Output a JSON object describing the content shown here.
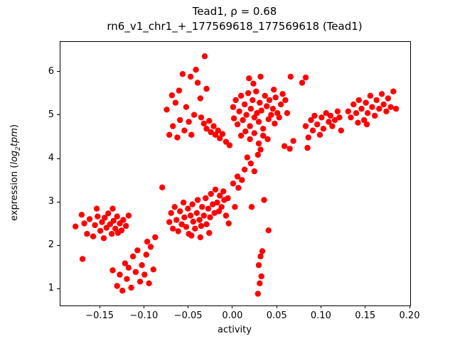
{
  "figure": {
    "title_line1": "Tead1, ρ = 0.68",
    "title_line2": "rn6_v1_chr1_+_177569618_177569618 (Tead1)"
  },
  "chart_data": {
    "type": "scatter",
    "title": "Tead1, ρ = 0.68",
    "subtitle": "rn6_v1_chr1_+_177569618_177569618 (Tead1)",
    "xlabel": "activity",
    "ylabel": "expression (log2 tpm)",
    "ylabel_parts": {
      "prefix": "expression (",
      "italic1": "log",
      "sub": "2",
      "italic2": "tpm",
      "suffix": ")"
    },
    "correlation_rho": 0.68,
    "marker_color": "#ff0000",
    "marker_radius": 4.2,
    "grid": false,
    "legend": "none",
    "xlim": [
      -0.195,
      0.2
    ],
    "ylim": [
      0.63,
      6.7
    ],
    "xticks": [
      {
        "v": -0.15,
        "label": "−0.15"
      },
      {
        "v": -0.1,
        "label": "−0.10"
      },
      {
        "v": -0.05,
        "label": "−0.05"
      },
      {
        "v": 0.0,
        "label": "0.00"
      },
      {
        "v": 0.05,
        "label": "0.05"
      },
      {
        "v": 0.1,
        "label": "0.10"
      },
      {
        "v": 0.15,
        "label": "0.15"
      },
      {
        "v": 0.2,
        "label": "0.20"
      }
    ],
    "yticks": [
      {
        "v": 1,
        "label": "1"
      },
      {
        "v": 2,
        "label": "2"
      },
      {
        "v": 3,
        "label": "3"
      },
      {
        "v": 4,
        "label": "4"
      },
      {
        "v": 5,
        "label": "5"
      },
      {
        "v": 6,
        "label": "6"
      }
    ],
    "points": [
      [
        -0.178,
        2.45
      ],
      [
        -0.171,
        2.72
      ],
      [
        -0.168,
        2.52
      ],
      [
        -0.165,
        2.28
      ],
      [
        -0.162,
        2.62
      ],
      [
        -0.158,
        2.22
      ],
      [
        -0.156,
        2.48
      ],
      [
        -0.153,
        2.68
      ],
      [
        -0.15,
        2.35
      ],
      [
        -0.148,
        2.55
      ],
      [
        -0.146,
        2.18
      ],
      [
        -0.145,
        2.65
      ],
      [
        -0.143,
        2.42
      ],
      [
        -0.141,
        2.75
      ],
      [
        -0.139,
        2.5
      ],
      [
        -0.137,
        2.28
      ],
      [
        -0.135,
        2.58
      ],
      [
        -0.133,
        2.4
      ],
      [
        -0.131,
        2.68
      ],
      [
        -0.13,
        2.3
      ],
      [
        -0.128,
        2.52
      ],
      [
        -0.126,
        2.36
      ],
      [
        -0.124,
        2.6
      ],
      [
        -0.17,
        1.7
      ],
      [
        -0.154,
        2.86
      ],
      [
        -0.136,
        2.86
      ],
      [
        -0.121,
        2.46
      ],
      [
        -0.118,
        2.7
      ],
      [
        -0.136,
        1.44
      ],
      [
        -0.131,
        1.08
      ],
      [
        -0.128,
        1.34
      ],
      [
        -0.125,
        0.97
      ],
      [
        -0.122,
        1.6
      ],
      [
        -0.12,
        1.24
      ],
      [
        -0.118,
        1.5
      ],
      [
        -0.115,
        1.04
      ],
      [
        -0.113,
        1.76
      ],
      [
        -0.11,
        1.4
      ],
      [
        -0.108,
        1.9
      ],
      [
        -0.105,
        1.18
      ],
      [
        -0.103,
        1.56
      ],
      [
        -0.1,
        1.34
      ],
      [
        -0.098,
        1.8
      ],
      [
        -0.095,
        1.14
      ],
      [
        -0.093,
        1.98
      ],
      [
        -0.09,
        1.46
      ],
      [
        -0.097,
        2.1
      ],
      [
        -0.088,
        2.2
      ],
      [
        -0.08,
        3.35
      ],
      [
        -0.072,
        2.55
      ],
      [
        -0.07,
        2.76
      ],
      [
        -0.068,
        2.4
      ],
      [
        -0.066,
        2.9
      ],
      [
        -0.064,
        2.6
      ],
      [
        -0.062,
        2.34
      ],
      [
        -0.06,
        2.8
      ],
      [
        -0.058,
        2.5
      ],
      [
        -0.056,
        3.0
      ],
      [
        -0.055,
        2.66
      ],
      [
        -0.053,
        2.44
      ],
      [
        -0.051,
        2.86
      ],
      [
        -0.05,
        2.28
      ],
      [
        -0.048,
        2.7
      ],
      [
        -0.047,
        2.24
      ],
      [
        -0.046,
        2.96
      ],
      [
        -0.045,
        2.56
      ],
      [
        -0.043,
        2.4
      ],
      [
        -0.041,
        2.76
      ],
      [
        -0.04,
        3.06
      ],
      [
        -0.038,
        2.6
      ],
      [
        -0.037,
        2.2
      ],
      [
        -0.036,
        2.46
      ],
      [
        -0.035,
        2.9
      ],
      [
        -0.033,
        2.7
      ],
      [
        -0.031,
        3.1
      ],
      [
        -0.03,
        2.5
      ],
      [
        -0.028,
        2.86
      ],
      [
        -0.027,
        2.3
      ],
      [
        -0.026,
        2.66
      ],
      [
        -0.025,
        3.2
      ],
      [
        -0.023,
        2.96
      ],
      [
        -0.021,
        2.76
      ],
      [
        -0.02,
        3.3
      ],
      [
        -0.018,
        3.0
      ],
      [
        -0.016,
        2.8
      ],
      [
        -0.015,
        3.16
      ],
      [
        -0.013,
        2.9
      ],
      [
        -0.011,
        3.26
      ],
      [
        -0.01,
        3.06
      ],
      [
        -0.008,
        2.7
      ],
      [
        -0.006,
        3.1
      ],
      [
        -0.005,
        2.52
      ],
      [
        0.002,
        2.9
      ],
      [
        0.006,
        3.34
      ],
      [
        0.0,
        3.44
      ],
      [
        0.005,
        3.6
      ],
      [
        0.01,
        3.52
      ],
      [
        0.013,
        3.76
      ],
      [
        0.016,
        4.04
      ],
      [
        0.02,
        3.9
      ],
      [
        0.024,
        3.72
      ],
      [
        0.028,
        4.1
      ],
      [
        0.031,
        4.22
      ],
      [
        0.035,
        3.06
      ],
      [
        0.04,
        2.36
      ],
      [
        0.021,
        2.9
      ],
      [
        0.028,
        0.9
      ],
      [
        0.03,
        1.14
      ],
      [
        0.032,
        1.3
      ],
      [
        0.029,
        1.56
      ],
      [
        0.031,
        1.76
      ],
      [
        0.033,
        1.88
      ],
      [
        -0.075,
        5.14
      ],
      [
        -0.072,
        4.56
      ],
      [
        -0.069,
        5.47
      ],
      [
        -0.068,
        4.76
      ],
      [
        -0.065,
        5.3
      ],
      [
        -0.063,
        4.5
      ],
      [
        -0.061,
        5.58
      ],
      [
        -0.06,
        4.9
      ],
      [
        -0.057,
        5.96
      ],
      [
        -0.055,
        4.66
      ],
      [
        -0.053,
        5.2
      ],
      [
        -0.05,
        4.86
      ],
      [
        -0.048,
        5.9
      ],
      [
        -0.047,
        4.56
      ],
      [
        -0.044,
        5.02
      ],
      [
        -0.042,
        6.06
      ],
      [
        -0.04,
        5.76
      ],
      [
        -0.037,
        5.4
      ],
      [
        -0.032,
        6.37
      ],
      [
        -0.03,
        5.62
      ],
      [
        -0.036,
        4.96
      ],
      [
        -0.033,
        4.82
      ],
      [
        -0.03,
        4.7
      ],
      [
        -0.027,
        4.88
      ],
      [
        -0.025,
        4.62
      ],
      [
        -0.022,
        4.76
      ],
      [
        -0.02,
        4.56
      ],
      [
        -0.017,
        4.66
      ],
      [
        -0.015,
        4.48
      ],
      [
        -0.012,
        4.58
      ],
      [
        -0.008,
        4.4
      ],
      [
        -0.004,
        4.32
      ],
      [
        0.0,
        5.2
      ],
      [
        0.001,
        4.94
      ],
      [
        0.003,
        5.36
      ],
      [
        0.005,
        4.8
      ],
      [
        0.007,
        5.1
      ],
      [
        0.009,
        5.46
      ],
      [
        0.011,
        4.9
      ],
      [
        0.013,
        5.26
      ],
      [
        0.015,
        5.02
      ],
      [
        0.017,
        5.52
      ],
      [
        0.019,
        4.76
      ],
      [
        0.02,
        5.16
      ],
      [
        0.022,
        5.36
      ],
      [
        0.024,
        4.96
      ],
      [
        0.026,
        5.56
      ],
      [
        0.027,
        5.06
      ],
      [
        0.029,
        4.86
      ],
      [
        0.03,
        5.3
      ],
      [
        0.032,
        5.12
      ],
      [
        0.034,
        4.7
      ],
      [
        0.036,
        5.46
      ],
      [
        0.038,
        5.22
      ],
      [
        0.04,
        4.92
      ],
      [
        0.041,
        5.36
      ],
      [
        0.043,
        5.02
      ],
      [
        0.045,
        5.16
      ],
      [
        0.047,
        4.82
      ],
      [
        0.048,
        5.42
      ],
      [
        0.05,
        5.06
      ],
      [
        0.052,
        4.96
      ],
      [
        0.054,
        5.26
      ],
      [
        0.014,
        4.64
      ],
      [
        0.024,
        4.6
      ],
      [
        0.034,
        4.54
      ],
      [
        0.009,
        4.54
      ],
      [
        0.019,
        4.46
      ],
      [
        0.029,
        4.36
      ],
      [
        0.039,
        4.46
      ],
      [
        0.018,
        5.86
      ],
      [
        0.023,
        5.74
      ],
      [
        0.031,
        5.9
      ],
      [
        0.046,
        5.6
      ],
      [
        0.056,
        5.5
      ],
      [
        0.059,
        5.36
      ],
      [
        0.061,
        5.06
      ],
      [
        0.065,
        5.9
      ],
      [
        0.082,
        5.88
      ],
      [
        0.078,
        5.76
      ],
      [
        0.058,
        4.3
      ],
      [
        0.068,
        4.42
      ],
      [
        0.064,
        4.24
      ],
      [
        0.082,
        4.76
      ],
      [
        0.085,
        4.5
      ],
      [
        0.088,
        4.9
      ],
      [
        0.09,
        4.66
      ],
      [
        0.092,
        5.0
      ],
      [
        0.095,
        4.8
      ],
      [
        0.098,
        4.56
      ],
      [
        0.1,
        4.96
      ],
      [
        0.102,
        4.7
      ],
      [
        0.105,
        5.06
      ],
      [
        0.108,
        4.86
      ],
      [
        0.11,
        5.0
      ],
      [
        0.112,
        4.76
      ],
      [
        0.115,
        4.9
      ],
      [
        0.118,
        5.1
      ],
      [
        0.12,
        4.96
      ],
      [
        0.122,
        4.66
      ],
      [
        0.084,
        4.26
      ],
      [
        0.13,
        5.1
      ],
      [
        0.133,
        4.96
      ],
      [
        0.136,
        5.26
      ],
      [
        0.139,
        5.06
      ],
      [
        0.142,
        5.36
      ],
      [
        0.145,
        5.16
      ],
      [
        0.148,
        4.9
      ],
      [
        0.15,
        5.3
      ],
      [
        0.152,
        5.06
      ],
      [
        0.155,
        5.46
      ],
      [
        0.157,
        5.2
      ],
      [
        0.16,
        5.0
      ],
      [
        0.162,
        5.36
      ],
      [
        0.165,
        5.16
      ],
      [
        0.168,
        5.5
      ],
      [
        0.17,
        5.26
      ],
      [
        0.173,
        5.1
      ],
      [
        0.175,
        5.4
      ],
      [
        0.178,
        5.2
      ],
      [
        0.181,
        5.56
      ],
      [
        0.184,
        5.16
      ],
      [
        0.141,
        4.84
      ],
      [
        0.151,
        4.8
      ]
    ]
  }
}
